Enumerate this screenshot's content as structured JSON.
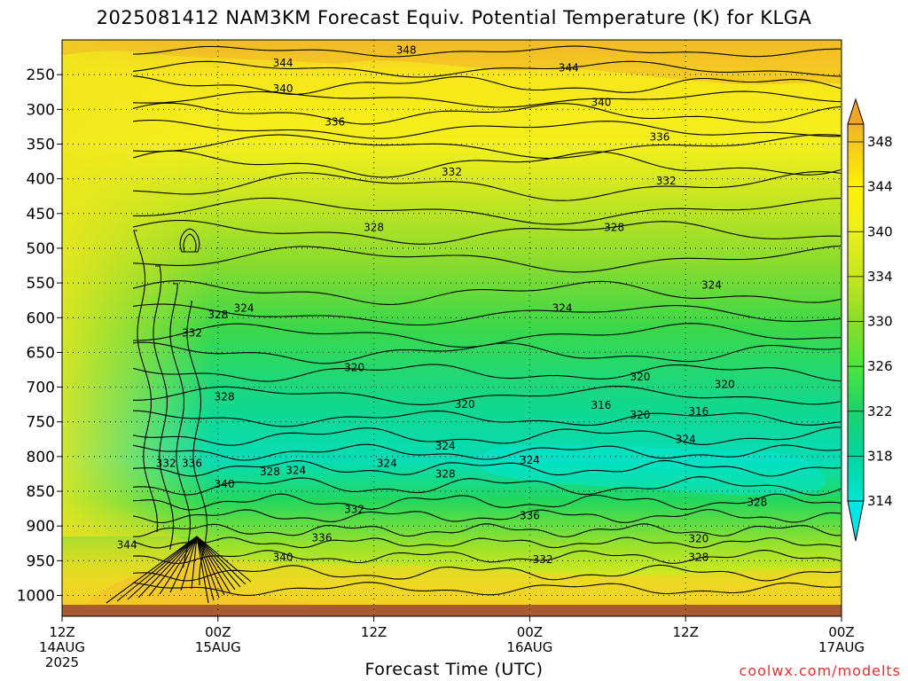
{
  "title": "2025081412 NAM3KM Forecast Equiv. Potential Temperature (K) for KLGA",
  "xlabel": "Forecast Time (UTC)",
  "credit": "coolwx.com/modelts",
  "colors": {
    "c314": "#00e6d2",
    "c318": "#00d6a0",
    "c322": "#1ed26a",
    "c326": "#4ee63c",
    "c330": "#8cdc28",
    "c334": "#c8e61e",
    "c338": "#ecf01a",
    "c342": "#fff000",
    "c346": "#f6d21e",
    "c350": "#f0b428",
    "ground": "#a85a32",
    "contour": "#000000",
    "grid": "#000000"
  },
  "chart_data": {
    "type": "heatmap",
    "title": "2025081412 NAM3KM Forecast Equiv. Potential Temperature (K) for KLGA",
    "xlabel": "Forecast Time (UTC)",
    "ylabel": "",
    "y_axis": {
      "ticks": [
        250,
        300,
        350,
        400,
        450,
        500,
        550,
        600,
        650,
        700,
        750,
        800,
        850,
        900,
        950,
        1000
      ],
      "range": [
        200,
        1030
      ]
    },
    "x_axis": {
      "range_hours": [
        0,
        60
      ],
      "ticks": [
        {
          "hour": 0,
          "lines": [
            "12Z",
            "14AUG",
            "2025"
          ]
        },
        {
          "hour": 12,
          "lines": [
            "00Z",
            "15AUG"
          ]
        },
        {
          "hour": 24,
          "lines": [
            "12Z"
          ]
        },
        {
          "hour": 36,
          "lines": [
            "00Z",
            "16AUG"
          ]
        },
        {
          "hour": 48,
          "lines": [
            "12Z"
          ]
        },
        {
          "hour": 60,
          "lines": [
            "00Z",
            "17AUG"
          ]
        }
      ]
    },
    "colorbar": {
      "ticks": [
        314,
        318,
        322,
        326,
        330,
        334,
        340,
        344,
        348
      ],
      "labels": [
        "314",
        "318",
        "322",
        "326",
        "330",
        "334",
        "340",
        "344",
        "348"
      ]
    },
    "contour_labels": [
      {
        "text": "348",
        "hour": 26.5,
        "p": 215
      },
      {
        "text": "344",
        "hour": 17,
        "p": 233
      },
      {
        "text": "344",
        "hour": 39,
        "p": 240
      },
      {
        "text": "340",
        "hour": 17,
        "p": 270
      },
      {
        "text": "340",
        "hour": 41.5,
        "p": 290
      },
      {
        "text": "336",
        "hour": 21,
        "p": 318
      },
      {
        "text": "336",
        "hour": 46,
        "p": 340
      },
      {
        "text": "332",
        "hour": 30,
        "p": 390
      },
      {
        "text": "332",
        "hour": 46.5,
        "p": 403
      },
      {
        "text": "328",
        "hour": 24,
        "p": 470
      },
      {
        "text": "328",
        "hour": 42.5,
        "p": 470
      },
      {
        "text": "324",
        "hour": 50,
        "p": 553
      },
      {
        "text": "324",
        "hour": 38.5,
        "p": 586
      },
      {
        "text": "324",
        "hour": 14,
        "p": 586
      },
      {
        "text": "328",
        "hour": 12,
        "p": 596
      },
      {
        "text": "332",
        "hour": 10,
        "p": 622
      },
      {
        "text": "320",
        "hour": 22.5,
        "p": 672
      },
      {
        "text": "320",
        "hour": 44.5,
        "p": 685
      },
      {
        "text": "320",
        "hour": 51,
        "p": 696
      },
      {
        "text": "328",
        "hour": 12.5,
        "p": 714
      },
      {
        "text": "320",
        "hour": 31,
        "p": 725
      },
      {
        "text": "316",
        "hour": 41.5,
        "p": 726
      },
      {
        "text": "316",
        "hour": 49,
        "p": 735
      },
      {
        "text": "320",
        "hour": 44.5,
        "p": 740
      },
      {
        "text": "324",
        "hour": 48,
        "p": 775
      },
      {
        "text": "324",
        "hour": 29.5,
        "p": 785
      },
      {
        "text": "324",
        "hour": 36,
        "p": 805
      },
      {
        "text": "332",
        "hour": 8,
        "p": 810
      },
      {
        "text": "336",
        "hour": 10,
        "p": 810
      },
      {
        "text": "324",
        "hour": 25,
        "p": 810
      },
      {
        "text": "324",
        "hour": 18,
        "p": 820
      },
      {
        "text": "328",
        "hour": 16,
        "p": 822
      },
      {
        "text": "328",
        "hour": 29.5,
        "p": 825
      },
      {
        "text": "340",
        "hour": 12.5,
        "p": 840
      },
      {
        "text": "328",
        "hour": 53.5,
        "p": 866
      },
      {
        "text": "332",
        "hour": 22.5,
        "p": 876
      },
      {
        "text": "336",
        "hour": 36,
        "p": 885
      },
      {
        "text": "336",
        "hour": 20,
        "p": 917
      },
      {
        "text": "320",
        "hour": 49,
        "p": 918
      },
      {
        "text": "344",
        "hour": 5,
        "p": 927
      },
      {
        "text": "328",
        "hour": 49,
        "p": 945
      },
      {
        "text": "332",
        "hour": 37,
        "p": 948
      },
      {
        "text": "340",
        "hour": 17,
        "p": 945
      }
    ]
  }
}
